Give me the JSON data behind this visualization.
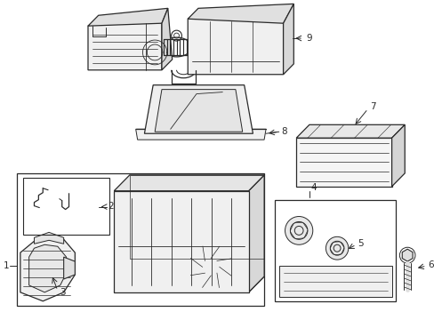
{
  "background_color": "#ffffff",
  "line_color": "#2a2a2a",
  "fig_width": 4.89,
  "fig_height": 3.6,
  "dpi": 100,
  "label_fontsize": 7.5
}
